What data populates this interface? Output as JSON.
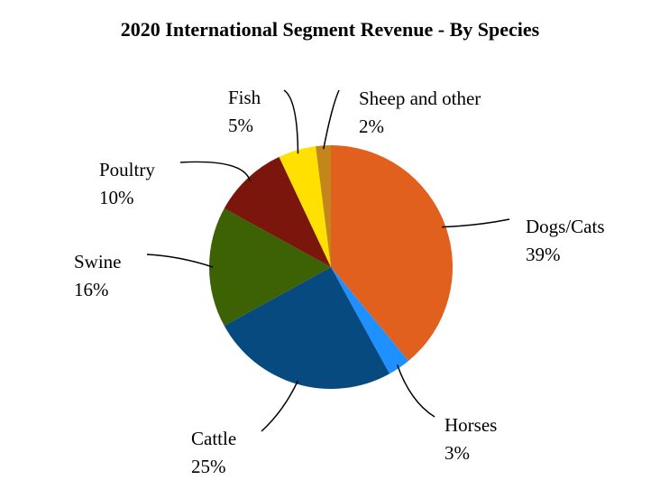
{
  "chart_data": {
    "type": "pie",
    "title": "2020 International Segment Revenue - By Species",
    "categories": [
      "Dogs/Cats",
      "Horses",
      "Cattle",
      "Swine",
      "Poultry",
      "Fish",
      "Sheep and other"
    ],
    "values": [
      39,
      3,
      25,
      16,
      10,
      5,
      2
    ],
    "value_labels": [
      "39%",
      "3%",
      "25%",
      "16%",
      "10%",
      "5%",
      "2%"
    ],
    "colors": [
      "#e2601e",
      "#1e90ff",
      "#064a80",
      "#3c6203",
      "#7b160d",
      "#ffe000",
      "#c4861a"
    ]
  }
}
